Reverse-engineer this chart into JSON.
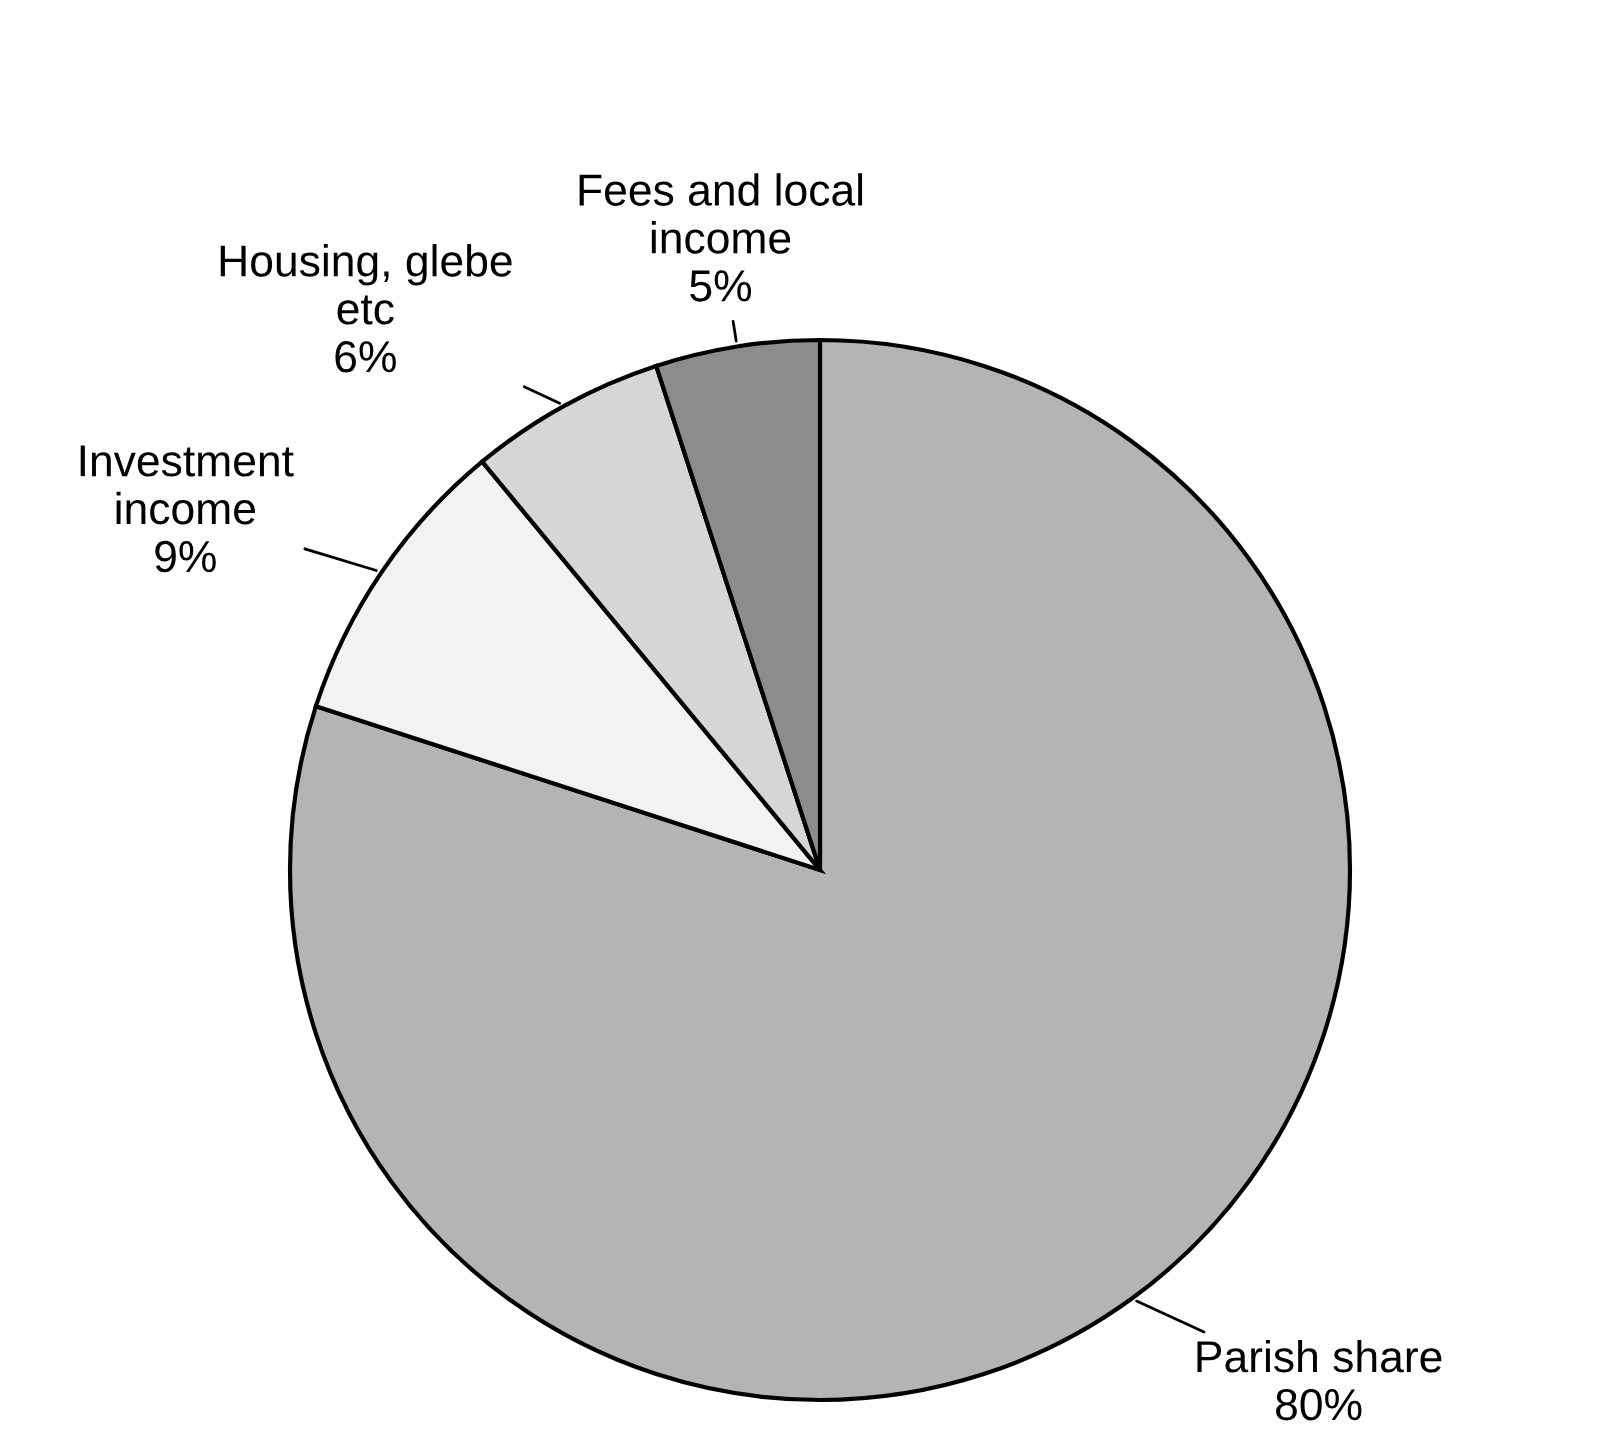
{
  "chart_data": {
    "type": "pie",
    "categories": [
      "Parish share",
      "Investment\nincome",
      "Housing, glebe\netc",
      "Fees and local\nincome"
    ],
    "values": [
      80,
      9,
      6,
      5
    ],
    "value_labels": [
      "80%",
      "9%",
      "6%",
      "5%"
    ],
    "colors": [
      "#b4b4b4",
      "#f2f2f2",
      "#d6d6d6",
      "#8c8c8c"
    ],
    "legend": false
  }
}
